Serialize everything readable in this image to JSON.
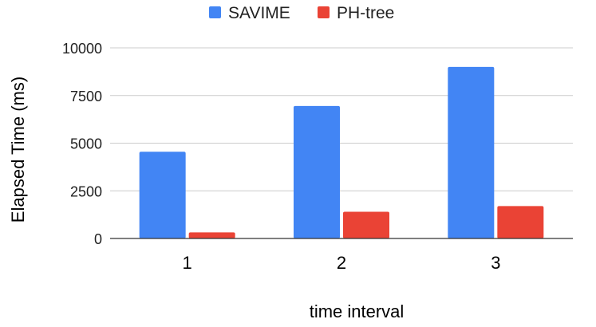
{
  "chart_data": {
    "type": "bar",
    "title": "",
    "categories": [
      "1",
      "2",
      "3"
    ],
    "series": [
      {
        "name": "SAVIME",
        "values": [
          4550,
          6950,
          9000
        ],
        "color": "#4285f4"
      },
      {
        "name": "PH-tree",
        "values": [
          320,
          1400,
          1700
        ],
        "color": "#ea4335"
      }
    ],
    "xlabel": "time interval",
    "ylabel": "Elapsed Time (ms)",
    "ylim": [
      0,
      10000
    ],
    "yticks": [
      "0",
      "2500",
      "5000",
      "7500",
      "10000"
    ],
    "grid": true,
    "legend_position": "top-center"
  }
}
